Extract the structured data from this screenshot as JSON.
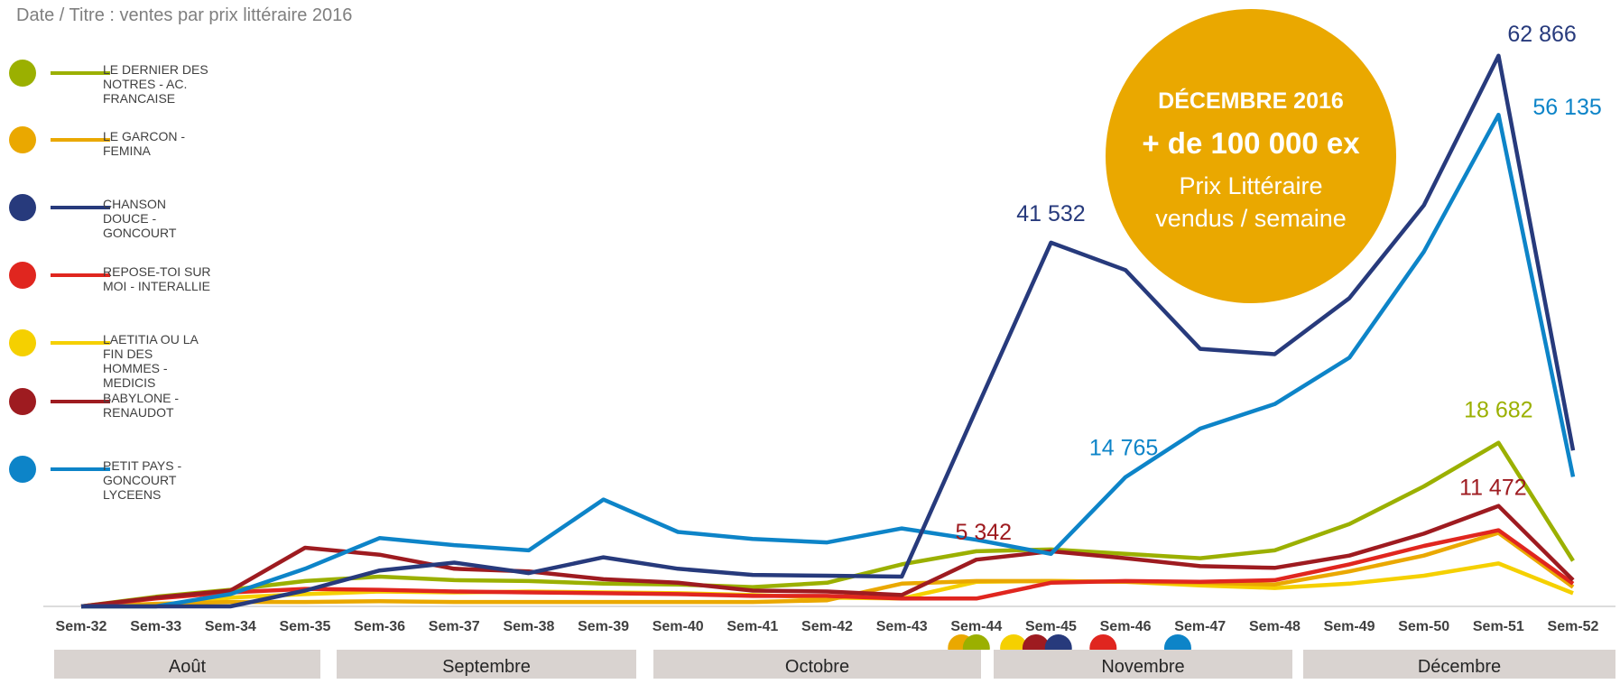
{
  "title": "Date / Titre : ventes par prix littéraire 2016",
  "callout": {
    "line1": "DÉCEMBRE 2016",
    "line2": "+ de 100 000 ex",
    "line3": "Prix Littéraire",
    "line4": "vendus / semaine",
    "color": "#eaa800"
  },
  "legend": [
    {
      "label": "LE DERNIER DES NOTRES - AC. FRANCAISE",
      "color": "#9bb000"
    },
    {
      "label": "LE GARCON - FEMINA",
      "color": "#eaa800"
    },
    {
      "label": "CHANSON DOUCE - GONCOURT",
      "color": "#273a7c"
    },
    {
      "label": " REPOSE-TOI SUR MOI - INTERALLIE",
      "color": "#e0261f"
    },
    {
      "label": "LAETITIA OU LA FIN DES HOMMES - MEDICIS",
      "color": "#f5d000"
    },
    {
      "label": "BABYLONE - RENAUDOT",
      "color": "#9e1b20"
    },
    {
      "label": "PETIT PAYS - GONCOURT LYCEENS",
      "color": "#0d84c8"
    }
  ],
  "months": [
    "Août",
    "Septembre",
    "Octobre",
    "Novembre",
    "Décembre"
  ],
  "chart_data": {
    "type": "line",
    "categories": [
      "Sem-32",
      "Sem-33",
      "Sem-34",
      "Sem-35",
      "Sem-36",
      "Sem-37",
      "Sem-38",
      "Sem-39",
      "Sem-40",
      "Sem-41",
      "Sem-42",
      "Sem-43",
      "Sem-44",
      "Sem-45",
      "Sem-46",
      "Sem-47",
      "Sem-48",
      "Sem-49",
      "Sem-50",
      "Sem-51",
      "Sem-52"
    ],
    "ylim": [
      0,
      68000
    ],
    "grid": false,
    "legend_position": "left",
    "series": [
      {
        "name": "LE DERNIER DES NOTRES - AC. FRANCAISE",
        "color": "#9bb000",
        "values": [
          0,
          1100,
          1900,
          2900,
          3400,
          3000,
          2900,
          2600,
          2500,
          2200,
          2700,
          4800,
          6300,
          6500,
          6000,
          5500,
          6400,
          9400,
          13700,
          18682,
          5200
        ]
      },
      {
        "name": "LE GARCON - FEMINA",
        "color": "#eaa800",
        "values": [
          0,
          300,
          500,
          500,
          600,
          500,
          500,
          500,
          500,
          500,
          700,
          2600,
          2900,
          2900,
          2800,
          2700,
          2500,
          4000,
          5800,
          8400,
          2200
        ]
      },
      {
        "name": "CHANSON DOUCE - GONCOURT",
        "color": "#273a7c",
        "values": [
          0,
          0,
          0,
          1800,
          4100,
          5000,
          3800,
          5600,
          4300,
          3600,
          3500,
          3400,
          22500,
          41532,
          38400,
          29400,
          28800,
          35200,
          45800,
          62866,
          17800
        ]
      },
      {
        "name": " REPOSE-TOI SUR MOI - INTERALLIE",
        "color": "#e0261f",
        "values": [
          0,
          900,
          1600,
          2000,
          1900,
          1700,
          1600,
          1500,
          1400,
          1200,
          1200,
          900,
          900,
          2700,
          2900,
          2800,
          3000,
          4800,
          6900,
          8700,
          2600
        ]
      },
      {
        "name": "LAETITIA OU LA FIN DES HOMMES - MEDICIS",
        "color": "#f5d000",
        "values": [
          0,
          0,
          1000,
          1400,
          1700,
          1600,
          1700,
          1600,
          1500,
          1300,
          1000,
          900,
          2800,
          2900,
          2800,
          2400,
          2100,
          2600,
          3500,
          4900,
          1500
        ]
      },
      {
        "name": "BABYLONE - RENAUDOT",
        "color": "#9e1b20",
        "values": [
          0,
          1000,
          1800,
          6700,
          5900,
          4300,
          4000,
          3100,
          2700,
          1800,
          1700,
          1300,
          5342,
          6300,
          5500,
          4600,
          4400,
          5800,
          8300,
          11472,
          3000
        ]
      },
      {
        "name": "PETIT PAYS - GONCOURT LYCEENS",
        "color": "#0d84c8",
        "values": [
          0,
          0,
          1400,
          4300,
          7800,
          7000,
          6400,
          12200,
          8500,
          7700,
          7300,
          8900,
          7600,
          6000,
          14765,
          20300,
          23100,
          28400,
          40500,
          56135,
          14800
        ]
      }
    ],
    "data_labels": [
      {
        "text": "62 866",
        "series": 2,
        "index": 19,
        "color": "#273a7c"
      },
      {
        "text": "56 135",
        "series": 6,
        "index": 19,
        "color": "#0d84c8"
      },
      {
        "text": "41 532",
        "series": 2,
        "index": 13,
        "color": "#273a7c"
      },
      {
        "text": "18 682",
        "series": 0,
        "index": 19,
        "color": "#9bb000"
      },
      {
        "text": "14 765",
        "series": 6,
        "index": 14,
        "color": "#0d84c8"
      },
      {
        "text": "11 472",
        "series": 5,
        "index": 19,
        "color": "#9e1b20"
      },
      {
        "text": "5 342",
        "series": 5,
        "index": 12,
        "color": "#9e1b20"
      }
    ],
    "marker_dots": [
      {
        "color": "#eaa800",
        "index": 11.8
      },
      {
        "color": "#9bb000",
        "index": 12.0
      },
      {
        "color": "#f5d000",
        "index": 12.5
      },
      {
        "color": "#9e1b20",
        "index": 12.8
      },
      {
        "color": "#273a7c",
        "index": 13.1
      },
      {
        "color": "#e0261f",
        "index": 13.7
      },
      {
        "color": "#0d84c8",
        "index": 14.7
      }
    ]
  }
}
